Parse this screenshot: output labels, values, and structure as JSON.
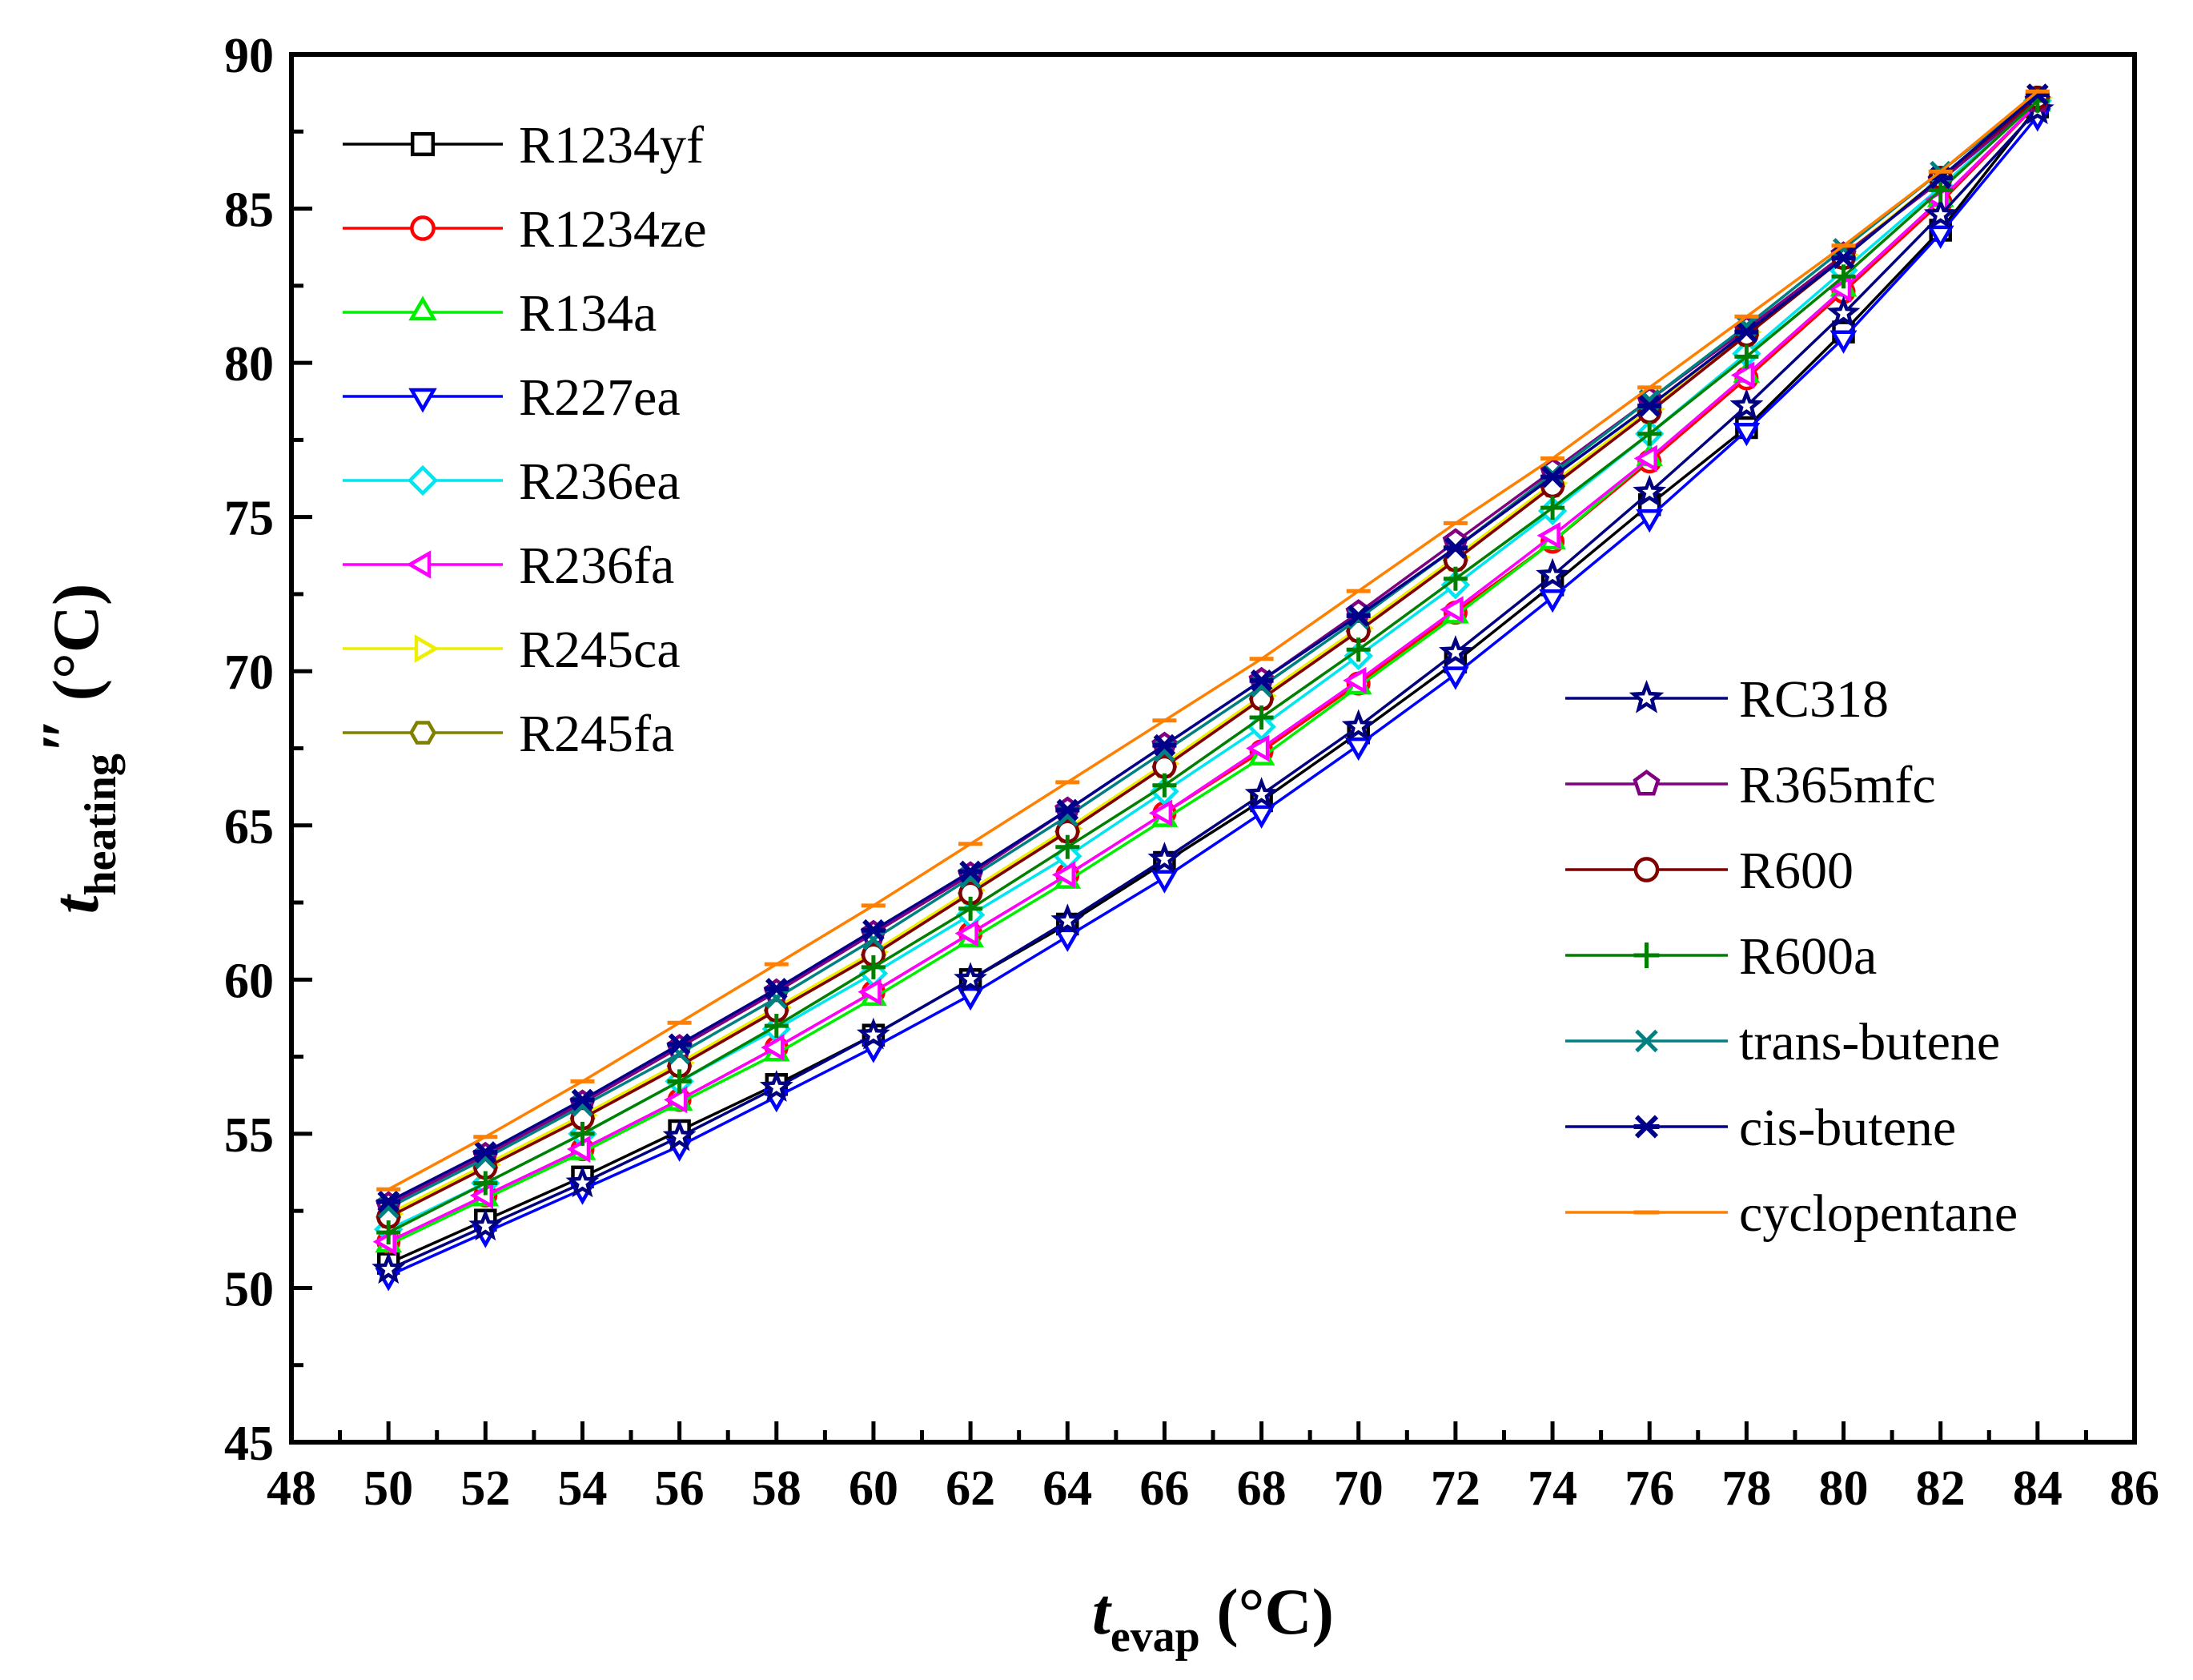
{
  "chart_data": {
    "type": "line",
    "title": "",
    "xlabel": "t_evap (°C)",
    "xlabel_parts": {
      "main": "t",
      "sub": "evap",
      "unit": " (°C)"
    },
    "ylabel": "t_heating″ (°C)",
    "ylabel_parts": {
      "main": "t",
      "sub": "heating",
      "mark": "″",
      "unit": " (°C)"
    },
    "xlim": [
      48,
      86
    ],
    "ylim": [
      45,
      90
    ],
    "xticks": [
      "48",
      "50",
      "52",
      "54",
      "56",
      "58",
      "60",
      "62",
      "64",
      "66",
      "68",
      "70",
      "72",
      "74",
      "76",
      "78",
      "80",
      "82",
      "84",
      "86"
    ],
    "yticks": [
      "45",
      "50",
      "55",
      "60",
      "65",
      "70",
      "75",
      "80",
      "85",
      "90"
    ],
    "x": [
      50,
      52,
      54,
      56,
      58,
      60,
      62,
      64,
      66,
      68,
      70,
      72,
      74,
      76,
      78,
      80,
      82,
      84
    ],
    "grid": false,
    "legend": [
      {
        "placement": "top-left",
        "items": [
          "R1234yf",
          "R1234ze",
          "R134a",
          "R227ea",
          "R236ea",
          "R236fa",
          "R245ca",
          "R245fa"
        ]
      },
      {
        "placement": "right",
        "items": [
          "RC318",
          "R365mfc",
          "R600",
          "R600a",
          "trans-butene",
          "cis-butene",
          "cyclopentane"
        ]
      }
    ],
    "series": [
      {
        "name": "R1234yf",
        "color": "#000000",
        "marker": "square",
        "values": [
          50.8,
          52.2,
          53.6,
          55.1,
          56.6,
          58.2,
          60.0,
          61.8,
          63.8,
          65.8,
          68.0,
          70.3,
          72.8,
          75.4,
          77.9,
          81.0,
          84.3,
          88.3
        ]
      },
      {
        "name": "R1234ze",
        "color": "#ff0000",
        "marker": "circle",
        "values": [
          51.5,
          53.0,
          54.5,
          56.1,
          57.8,
          59.6,
          61.5,
          63.4,
          65.4,
          67.4,
          69.6,
          71.9,
          74.2,
          76.8,
          79.5,
          82.3,
          85.2,
          88.4
        ]
      },
      {
        "name": "R134a",
        "color": "#00ee00",
        "marker": "triangle-up",
        "values": [
          51.4,
          52.9,
          54.4,
          56.0,
          57.6,
          59.4,
          61.3,
          63.2,
          65.2,
          67.2,
          69.5,
          71.8,
          74.2,
          76.9,
          79.6,
          82.4,
          85.3,
          88.4
        ]
      },
      {
        "name": "R227ea",
        "color": "#0000ff",
        "marker": "triangle-down",
        "values": [
          50.4,
          51.8,
          53.2,
          54.6,
          56.2,
          57.8,
          59.5,
          61.4,
          63.3,
          65.4,
          67.6,
          69.9,
          72.4,
          75.0,
          77.8,
          80.8,
          84.2,
          88.0
        ]
      },
      {
        "name": "R236ea",
        "color": "#00e5ee",
        "marker": "diamond",
        "values": [
          51.9,
          53.4,
          55.0,
          56.7,
          58.4,
          60.2,
          62.1,
          64.0,
          66.1,
          68.2,
          70.5,
          72.8,
          75.2,
          77.7,
          80.3,
          83.0,
          85.7,
          88.5
        ]
      },
      {
        "name": "R236fa",
        "color": "#ff00ff",
        "marker": "triangle-left",
        "values": [
          51.5,
          53.0,
          54.5,
          56.1,
          57.8,
          59.6,
          61.5,
          63.4,
          65.4,
          67.5,
          69.7,
          72.0,
          74.4,
          76.9,
          79.6,
          82.4,
          85.3,
          88.4
        ]
      },
      {
        "name": "R245ca",
        "color": "#eeee00",
        "marker": "triangle-right",
        "values": [
          52.4,
          54.0,
          55.6,
          57.3,
          59.1,
          60.9,
          62.9,
          64.9,
          67.0,
          69.2,
          71.4,
          73.7,
          76.1,
          78.5,
          81.0,
          83.5,
          86.0,
          88.6
        ]
      },
      {
        "name": "R245fa",
        "color": "#808000",
        "marker": "hexagon",
        "values": [
          52.3,
          53.9,
          55.5,
          57.2,
          59.0,
          60.8,
          62.8,
          64.8,
          66.9,
          69.1,
          71.3,
          73.6,
          76.0,
          78.4,
          80.9,
          83.4,
          86.0,
          88.6
        ]
      },
      {
        "name": "RC318",
        "color": "#000080",
        "marker": "star",
        "values": [
          50.6,
          52.0,
          53.4,
          54.9,
          56.5,
          58.2,
          60.0,
          61.9,
          63.9,
          66.0,
          68.2,
          70.6,
          73.1,
          75.8,
          78.6,
          81.6,
          84.8,
          88.2
        ]
      },
      {
        "name": "R365mfc",
        "color": "#800080",
        "marker": "pentagon",
        "values": [
          52.7,
          54.3,
          56.0,
          57.8,
          59.6,
          61.5,
          63.4,
          65.5,
          67.6,
          69.7,
          71.9,
          74.2,
          76.5,
          78.8,
          81.1,
          83.5,
          85.9,
          88.5
        ]
      },
      {
        "name": "R600",
        "color": "#800000",
        "marker": "circle",
        "values": [
          52.3,
          53.9,
          55.5,
          57.2,
          59.0,
          60.8,
          62.8,
          64.8,
          66.9,
          69.1,
          71.3,
          73.6,
          76.0,
          78.4,
          80.9,
          83.4,
          86.0,
          88.6
        ]
      },
      {
        "name": "R600a",
        "color": "#008000",
        "marker": "plus",
        "values": [
          51.8,
          53.4,
          55.0,
          56.7,
          58.5,
          60.4,
          62.3,
          64.3,
          66.3,
          68.5,
          70.7,
          73.0,
          75.3,
          77.7,
          80.2,
          82.8,
          85.6,
          88.5
        ]
      },
      {
        "name": "trans-butene",
        "color": "#008080",
        "marker": "cross",
        "values": [
          52.6,
          54.2,
          55.9,
          57.6,
          59.4,
          61.3,
          63.3,
          65.3,
          67.4,
          69.5,
          71.7,
          74.0,
          76.4,
          78.8,
          81.2,
          83.7,
          86.2,
          88.7
        ]
      },
      {
        "name": "cis-butene",
        "color": "#00008b",
        "marker": "asterisk",
        "values": [
          52.8,
          54.4,
          56.1,
          57.9,
          59.7,
          61.6,
          63.5,
          65.5,
          67.6,
          69.7,
          71.8,
          74.0,
          76.3,
          78.6,
          81.0,
          83.4,
          86.0,
          88.7
        ]
      },
      {
        "name": "cyclopentane",
        "color": "#ff8000",
        "marker": "dash",
        "values": [
          53.2,
          54.9,
          56.7,
          58.6,
          60.5,
          62.4,
          64.4,
          66.4,
          68.4,
          70.4,
          72.6,
          74.8,
          76.9,
          79.2,
          81.5,
          83.8,
          86.2,
          88.8
        ]
      }
    ]
  }
}
